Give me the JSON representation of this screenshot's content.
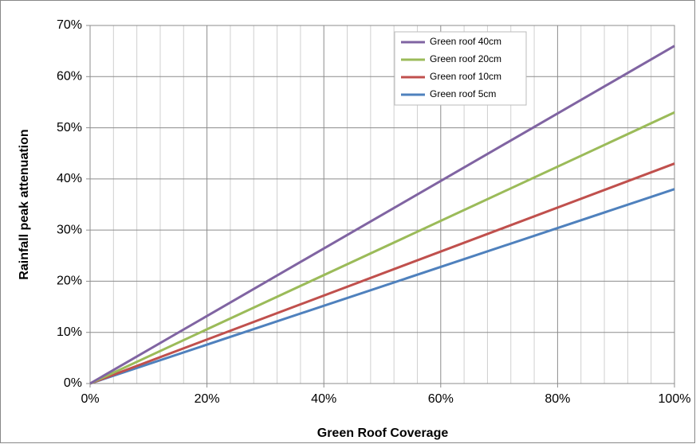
{
  "chart_data": {
    "type": "line",
    "x_label": "Green Roof Coverage",
    "y_label": "Rainfall peak attenuation",
    "x": [
      0,
      100
    ],
    "series": [
      {
        "name": "Green roof 40cm",
        "color": "#8064A2",
        "values": [
          0,
          66
        ]
      },
      {
        "name": "Green roof 20cm",
        "color": "#9BBB59",
        "values": [
          0,
          53
        ]
      },
      {
        "name": "Green roof 10cm",
        "color": "#C0504D",
        "values": [
          0,
          43
        ]
      },
      {
        "name": "Green roof 5cm",
        "color": "#4F81BD",
        "values": [
          0,
          38
        ]
      }
    ],
    "xlim": [
      0,
      100
    ],
    "xticks": [
      {
        "value": 0,
        "label": "0%"
      },
      {
        "value": 20,
        "label": "20%"
      },
      {
        "value": 40,
        "label": "40%"
      },
      {
        "value": 60,
        "label": "60%"
      },
      {
        "value": 80,
        "label": "80%"
      },
      {
        "value": 100,
        "label": "100%"
      }
    ],
    "ylim": [
      0,
      70
    ],
    "yticks": [
      {
        "value": 0,
        "label": "0%"
      },
      {
        "value": 10,
        "label": "10%"
      },
      {
        "value": 20,
        "label": "20%"
      },
      {
        "value": 30,
        "label": "30%"
      },
      {
        "value": 40,
        "label": "40%"
      },
      {
        "value": 50,
        "label": "50%"
      },
      {
        "value": 60,
        "label": "60%"
      },
      {
        "value": 70,
        "label": "70%"
      }
    ],
    "grid": true,
    "legend": "upper-center"
  }
}
